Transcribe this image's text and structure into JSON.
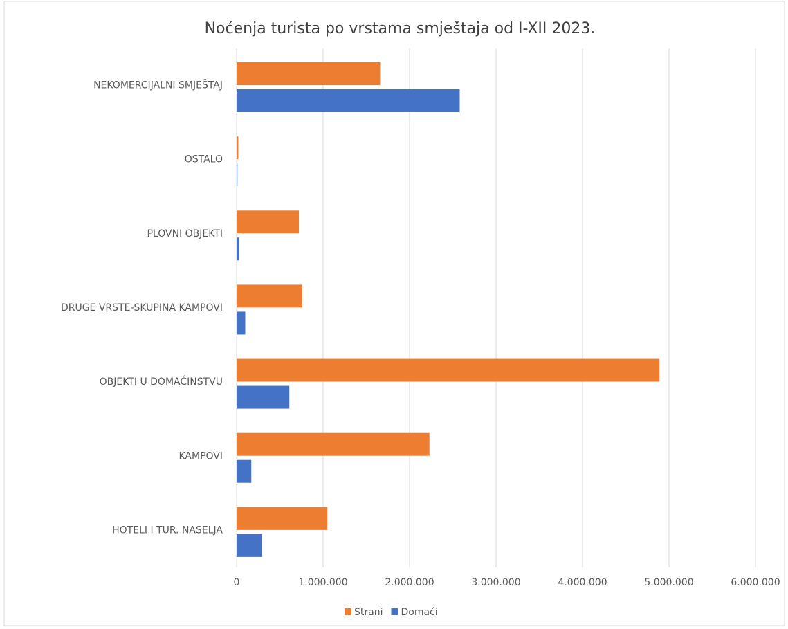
{
  "chart_data": {
    "type": "hbar",
    "title": "Noćenja turista po vrstama smještaja od I-XII 2023.",
    "categories": [
      "NEKOMERCIJALNI SMJEŠTAJ",
      "OSTALO",
      "PLOVNI OBJEKTI",
      "DRUGE VRSTE-SKUPINA KAMPOVI",
      "OBJEKTI U DOMAĆINSTVU",
      "KAMPOVI",
      "HOTELI I TUR. NASELJA"
    ],
    "series": [
      {
        "name": "Strani",
        "color": "#ed7d31",
        "values": [
          1660000,
          20000,
          720000,
          760000,
          4890000,
          2230000,
          1050000
        ]
      },
      {
        "name": "Domaći",
        "color": "#4472c4",
        "values": [
          2580000,
          10000,
          30000,
          100000,
          610000,
          170000,
          290000
        ]
      }
    ],
    "xlim": [
      0,
      6000000
    ],
    "xticks": [
      0,
      {
        "value": 1000000,
        "label": "1.000.000"
      },
      {
        "value": 2000000,
        "label": "2.000.000"
      },
      {
        "value": 3000000,
        "label": "3.000.000"
      },
      {
        "value": 4000000,
        "label": "4.000.000"
      },
      {
        "value": 5000000,
        "label": "5.000.000"
      },
      {
        "value": 6000000,
        "label": "6.000.000"
      }
    ],
    "grid": true,
    "legend": "bottom"
  }
}
